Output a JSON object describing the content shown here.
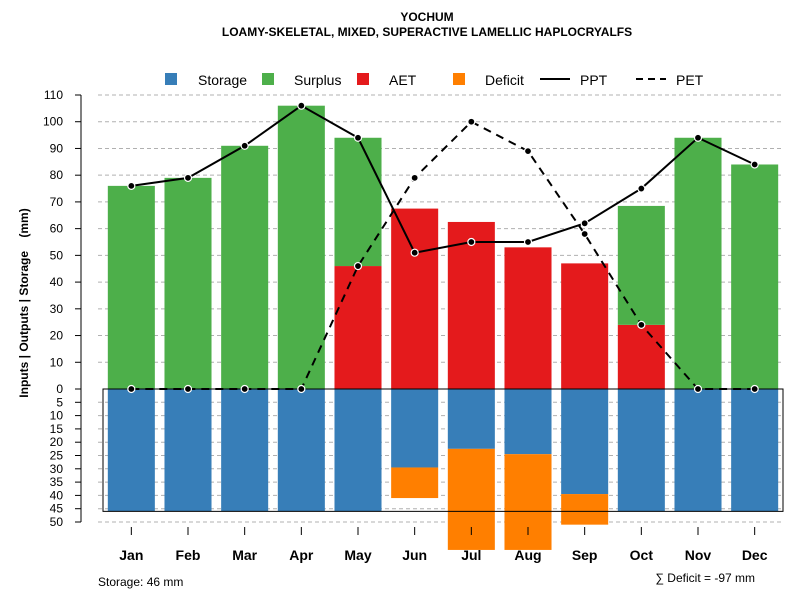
{
  "title": "YOCHUM",
  "subtitle": "LOAMY-SKELETAL, MIXED, SUPERACTIVE LAMELLIC HAPLOCRYALFS",
  "colors": {
    "storage": "#377EB8",
    "surplus": "#4DAF4A",
    "aet": "#E41A1C",
    "deficit": "#FF7F00",
    "line": "#000000",
    "grid": "#b0b0b0"
  },
  "legend": {
    "storage": "Storage",
    "surplus": "Surplus",
    "aet": "AET",
    "deficit": "Deficit",
    "ppt": "PPT",
    "pet": "PET"
  },
  "footer": {
    "storage_note": "Storage: 46 mm",
    "deficit_note": "∑ Deficit = -97 mm"
  },
  "chart_data": {
    "type": "bar",
    "title": "YOCHUM",
    "subtitle": "LOAMY-SKELETAL, MIXED, SUPERACTIVE LAMELLIC HAPLOCRYALFS",
    "ylabel": "Inputs | Outputs | Storage    (mm)",
    "ylim_top": [
      0,
      110
    ],
    "ylim_bottom": [
      0,
      50
    ],
    "yticks_top": [
      0,
      10,
      20,
      30,
      40,
      50,
      60,
      70,
      80,
      90,
      100,
      110
    ],
    "yticks_bottom": [
      5,
      10,
      15,
      20,
      25,
      30,
      35,
      40,
      45,
      50
    ],
    "storage_capacity": 46,
    "categories": [
      "Jan",
      "Feb",
      "Mar",
      "Apr",
      "May",
      "Jun",
      "Jul",
      "Aug",
      "Sep",
      "Oct",
      "Nov",
      "Dec"
    ],
    "series": [
      {
        "name": "AET",
        "values": [
          0,
          0,
          0,
          0,
          46,
          67.5,
          62.5,
          53,
          47,
          24,
          0,
          0
        ]
      },
      {
        "name": "Surplus",
        "values": [
          76,
          79,
          91,
          106,
          48,
          0,
          0,
          0,
          0,
          44.5,
          94,
          84
        ]
      },
      {
        "name": "Storage",
        "values": [
          46,
          46,
          46,
          46,
          46,
          29.5,
          22.5,
          24.5,
          39.5,
          46,
          46,
          46
        ]
      },
      {
        "name": "Deficit",
        "values": [
          0,
          0,
          0,
          0,
          0,
          11.5,
          38,
          36,
          11.5,
          0,
          0,
          0
        ]
      },
      {
        "name": "PPT",
        "values": [
          76,
          79,
          91,
          106,
          94,
          51,
          55,
          55,
          62,
          75,
          94,
          84
        ]
      },
      {
        "name": "PET",
        "values": [
          0,
          0,
          0,
          0,
          46,
          79,
          100,
          89,
          58,
          24,
          0,
          0
        ]
      }
    ]
  }
}
